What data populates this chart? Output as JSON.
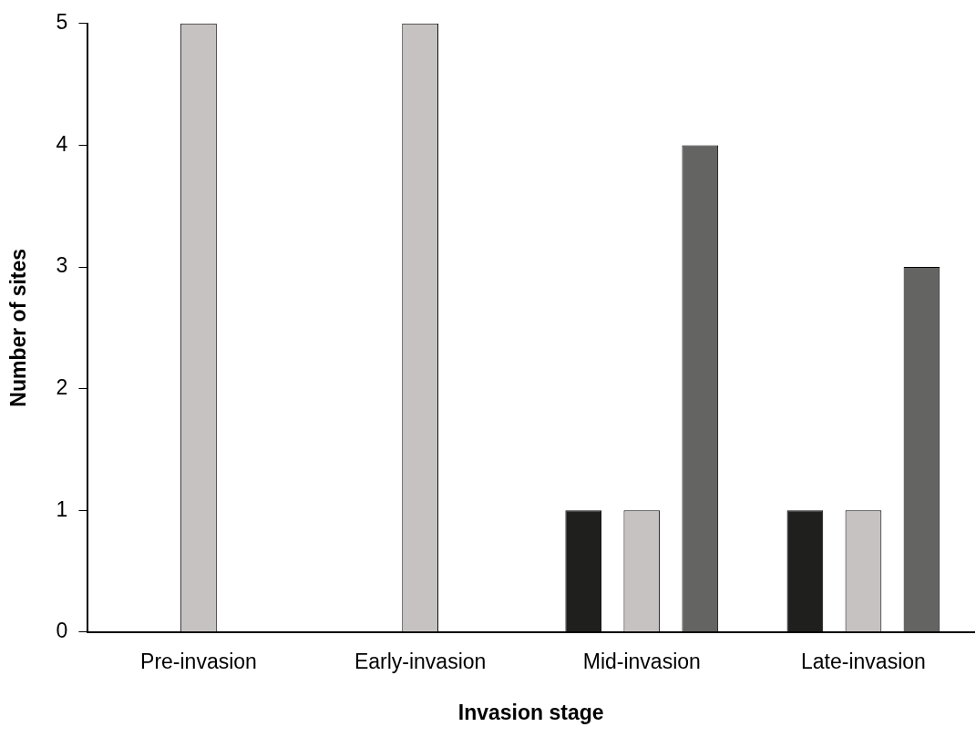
{
  "chart_data": {
    "type": "bar",
    "xlabel": "Invasion stage",
    "ylabel": "Number of sites",
    "categories": [
      "Pre-invasion",
      "Early-invasion",
      "Mid-invasion",
      "Late-invasion"
    ],
    "series": [
      {
        "color": "#1f1f1d",
        "values": [
          0,
          0,
          1,
          1
        ]
      },
      {
        "color": "#c6c2c2",
        "values": [
          5,
          5,
          1,
          1
        ]
      },
      {
        "color": "#646462",
        "values": [
          0,
          0,
          4,
          3
        ]
      }
    ],
    "ylim": [
      0,
      5
    ],
    "yticks": [
      0,
      1,
      2,
      3,
      4,
      5
    ],
    "grid": false,
    "legend": false
  }
}
